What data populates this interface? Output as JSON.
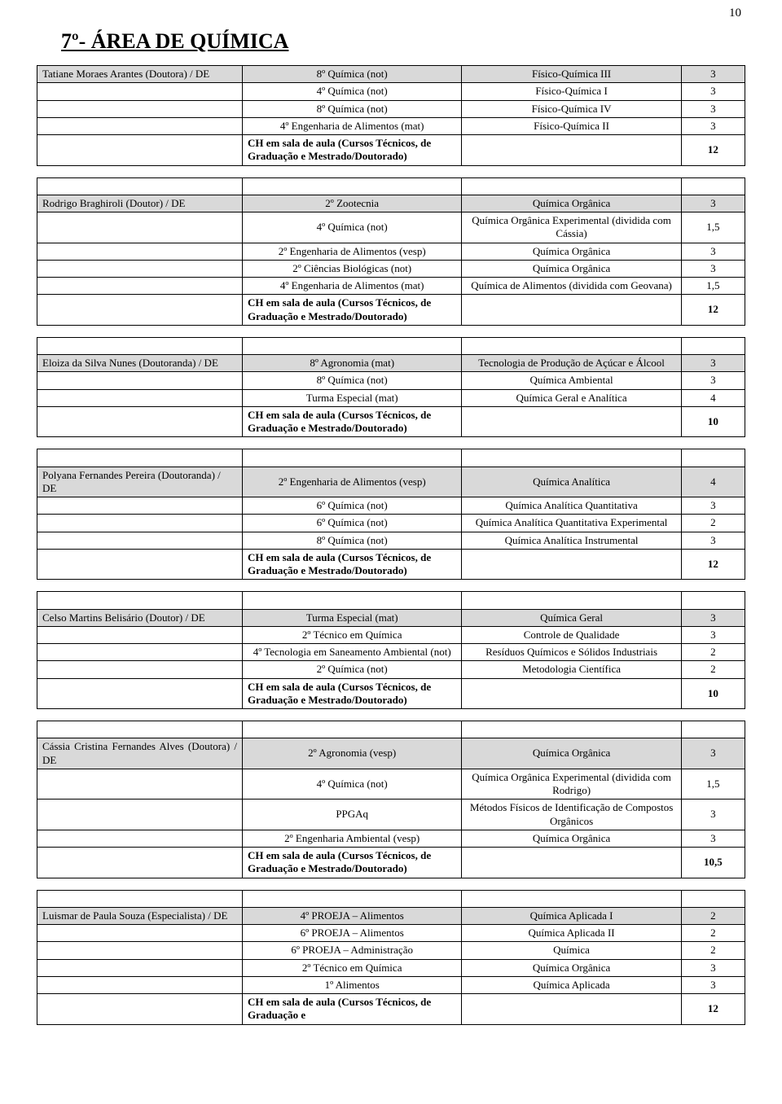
{
  "page_number": "10",
  "heading": "7º- ÁREA DE QUÍMICA",
  "ch_label": "CH em sala de aula (Cursos Técnicos, de Graduação e Mestrado/Doutorado)",
  "teachers": [
    {
      "name": "Tatiane Moraes Arantes (Doutora) / DE",
      "rows": [
        {
          "c": "8º Química (not)",
          "d": "Físico-Química III",
          "h": "3",
          "shade": true
        },
        {
          "c": "4º Química (not)",
          "d": "Físico-Química I",
          "h": "3"
        },
        {
          "c": "8º Química (not)",
          "d": "Físico-Química IV",
          "h": "3"
        },
        {
          "c": "4º Engenharia de Alimentos (mat)",
          "d": "Físico-Química II",
          "h": "3"
        }
      ],
      "ch": "12"
    },
    {
      "name": "Rodrigo Braghiroli (Doutor) / DE",
      "rows": [
        {
          "c": "2º Zootecnia",
          "d": "Química Orgânica",
          "h": "3",
          "shade": true
        },
        {
          "c": "4º Química (not)",
          "d": "Química Orgânica Experimental (dividida com Cássia)",
          "h": "1,5"
        },
        {
          "c": "2º Engenharia de Alimentos (vesp)",
          "d": "Química Orgânica",
          "h": "3"
        },
        {
          "c": "2º Ciências Biológicas (not)",
          "d": "Química Orgânica",
          "h": "3"
        },
        {
          "c": "4º Engenharia de Alimentos (mat)",
          "d": "Química de Alimentos (dividida com Geovana)",
          "h": "1,5"
        }
      ],
      "ch": "12"
    },
    {
      "name": "Eloiza da Silva Nunes (Doutoranda) / DE",
      "name_just": true,
      "rows": [
        {
          "c": "8º Agronomia (mat)",
          "d": "Tecnologia de Produção de Açúcar e Álcool",
          "h": "3",
          "shade": true
        },
        {
          "c": "8º Química (not)",
          "d": "Química Ambiental",
          "h": "3"
        },
        {
          "c": "Turma Especial (mat)",
          "d": "Química Geral e Analítica",
          "h": "4"
        }
      ],
      "ch": "10"
    },
    {
      "name": "Polyana Fernandes Pereira (Doutoranda) / DE",
      "rows": [
        {
          "c": "2º Engenharia de Alimentos (vesp)",
          "d": "Química Analítica",
          "h": "4",
          "shade": true
        },
        {
          "c": "6º Química (not)",
          "d": "Química Analítica Quantitativa",
          "h": "3"
        },
        {
          "c": "6º Química (not)",
          "d": "Química Analítica Quantitativa Experimental",
          "h": "2"
        },
        {
          "c": "8º Química (not)",
          "d": "Química Analítica Instrumental",
          "h": "3"
        }
      ],
      "ch": "12"
    },
    {
      "name": "Celso Martins Belisário (Doutor) / DE",
      "rows": [
        {
          "c": "Turma Especial (mat)",
          "d": "Química Geral",
          "h": "3",
          "shade": true
        },
        {
          "c": "2º Técnico em Química",
          "d": "Controle de Qualidade",
          "h": "3"
        },
        {
          "c": "4º Tecnologia em Saneamento Ambiental (not)",
          "d": "Resíduos Químicos e Sólidos Industriais",
          "h": "2"
        },
        {
          "c": "2º Química (not)",
          "d": "Metodologia Científica",
          "h": "2"
        }
      ],
      "ch": "10"
    },
    {
      "name": "Cássia Cristina Fernandes Alves (Doutora) / DE",
      "name_just": true,
      "rows": [
        {
          "c": "2º Agronomia (vesp)",
          "d": "Química Orgânica",
          "h": "3",
          "shade": true
        },
        {
          "c": "4º Química (not)",
          "d": "Química Orgânica Experimental (dividida com Rodrigo)",
          "h": "1,5"
        },
        {
          "c": "PPGAq",
          "d": "Métodos Físicos de Identificação de Compostos Orgânicos",
          "h": "3"
        },
        {
          "c": "2º Engenharia Ambiental (vesp)",
          "d": "Química Orgânica",
          "h": "3"
        }
      ],
      "ch": "10,5"
    },
    {
      "name": "Luismar de Paula Souza (Especialista) / DE",
      "rows": [
        {
          "c": "4º PROEJA – Alimentos",
          "d": "Química Aplicada I",
          "h": "2",
          "shade": true
        },
        {
          "c": "6º PROEJA – Alimentos",
          "d": "Química Aplicada II",
          "h": "2"
        },
        {
          "c": "6º PROEJA – Administração",
          "d": "Química",
          "h": "2"
        },
        {
          "c": "2º Técnico em Química",
          "d": "Química Orgânica",
          "h": "3"
        },
        {
          "c": "1º Alimentos",
          "d": "Química Aplicada",
          "h": "3"
        }
      ],
      "ch": "12",
      "ch_short": true
    }
  ]
}
